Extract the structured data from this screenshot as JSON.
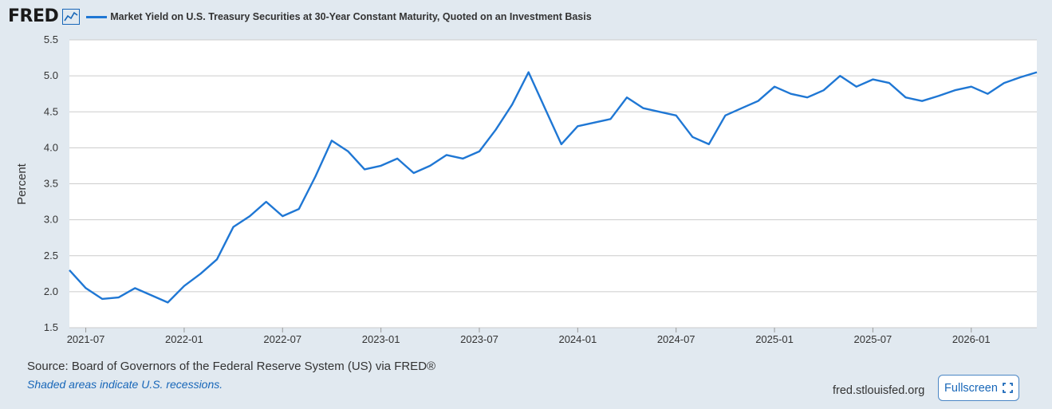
{
  "header": {
    "logo_text": "FRED",
    "series_title": "Market Yield on U.S. Treasury Securities at 30-Year Constant Maturity, Quoted on an Investment Basis"
  },
  "footer": {
    "source": "Source: Board of Governors of the Federal Reserve System (US) via FRED®",
    "recession_note": "Shaded areas indicate U.S. recessions.",
    "site": "fred.stlouisfed.org",
    "fullscreen_label": "Fullscreen"
  },
  "colors": {
    "line": "#1f77d4",
    "background": "#e1e9f0",
    "plot_background": "#ffffff",
    "grid": "#cccccc",
    "accent": "#1766b8"
  },
  "chart_data": {
    "type": "line",
    "title": "Market Yield on U.S. Treasury Securities at 30-Year Constant Maturity, Quoted on an Investment Basis",
    "xlabel": "",
    "ylabel": "Percent",
    "ylim": [
      1.5,
      5.5
    ],
    "grid": true,
    "yticks": [
      "1.5",
      "2.0",
      "2.5",
      "3.0",
      "3.5",
      "4.0",
      "4.5",
      "5.0",
      "5.5"
    ],
    "xticks": [
      "2021-07",
      "2022-01",
      "2022-07",
      "2023-01",
      "2023-07",
      "2024-01",
      "2024-07",
      "2025-01",
      "2025-07",
      "2026-01"
    ],
    "x_start": "2021-06",
    "x_end": "2026-05",
    "series": [
      {
        "name": "Market Yield on U.S. Treasury Securities at 30-Year Constant Maturity, Quoted on an Investment Basis",
        "x": [
          "2021-06",
          "2021-07",
          "2021-08",
          "2021-09",
          "2021-10",
          "2021-11",
          "2021-12",
          "2022-01",
          "2022-02",
          "2022-03",
          "2022-04",
          "2022-05",
          "2022-06",
          "2022-07",
          "2022-08",
          "2022-09",
          "2022-10",
          "2022-11",
          "2022-12",
          "2023-01",
          "2023-02",
          "2023-03",
          "2023-04",
          "2023-05",
          "2023-06",
          "2023-07",
          "2023-08",
          "2023-09",
          "2023-10",
          "2023-11",
          "2023-12",
          "2024-01",
          "2024-02",
          "2024-03",
          "2024-04",
          "2024-05",
          "2024-06",
          "2024-07",
          "2024-08",
          "2024-09",
          "2024-10",
          "2024-11",
          "2024-12",
          "2025-01",
          "2025-02",
          "2025-03",
          "2025-04",
          "2025-05",
          "2025-06",
          "2025-07",
          "2025-08",
          "2025-09",
          "2025-10",
          "2025-11",
          "2025-12",
          "2026-01",
          "2026-02",
          "2026-03",
          "2026-04",
          "2026-05"
        ],
        "values": [
          2.3,
          2.05,
          1.9,
          1.92,
          2.05,
          1.95,
          1.85,
          2.08,
          2.25,
          2.45,
          2.9,
          3.05,
          3.25,
          3.05,
          3.15,
          3.6,
          4.1,
          3.95,
          3.7,
          3.75,
          3.85,
          3.65,
          3.75,
          3.9,
          3.85,
          3.95,
          4.25,
          4.6,
          5.05,
          4.55,
          4.05,
          4.3,
          4.35,
          4.4,
          4.7,
          4.55,
          4.5,
          4.45,
          4.15,
          4.05,
          4.45,
          4.55,
          4.65,
          4.85,
          4.75,
          4.7,
          4.8,
          5.0,
          4.85,
          4.95,
          4.9,
          4.7,
          4.65,
          4.72,
          4.8,
          4.85,
          4.75,
          4.9,
          4.98,
          5.05
        ]
      }
    ]
  }
}
